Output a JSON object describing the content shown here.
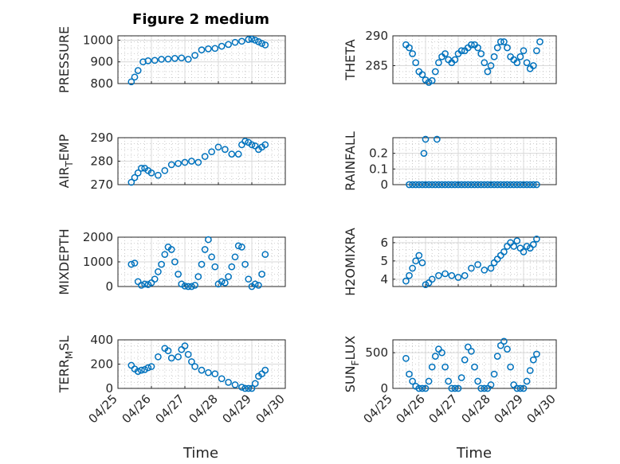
{
  "figure": {
    "title": "Figure 2 medium",
    "xlabel": "Time"
  },
  "colors": {
    "marker": "#0072bd",
    "axes": "#262626",
    "grid": "#d9d9d9"
  },
  "chart_data": [
    {
      "type": "scatter",
      "ylabel": "PRESSURE",
      "ylim": [
        800,
        1020
      ],
      "yticks": [
        "800",
        "900",
        "1000"
      ],
      "x": [
        25.4,
        25.5,
        25.6,
        25.75,
        25.9,
        26.1,
        26.3,
        26.5,
        26.7,
        26.9,
        27.1,
        27.3,
        27.5,
        27.7,
        27.9,
        28.1,
        28.3,
        28.5,
        28.7,
        28.9,
        29.0,
        29.1,
        29.2,
        29.3,
        29.4
      ],
      "y": [
        808,
        830,
        860,
        900,
        905,
        907,
        912,
        913,
        916,
        918,
        912,
        930,
        955,
        960,
        962,
        972,
        980,
        990,
        995,
        1003,
        1005,
        1000,
        993,
        985,
        978
      ]
    },
    {
      "type": "scatter",
      "ylabel": "THETA",
      "ylim": [
        282,
        290
      ],
      "yticks": [
        "285",
        "290"
      ],
      "x": [
        25.4,
        25.5,
        25.6,
        25.7,
        25.8,
        25.9,
        26.0,
        26.1,
        26.2,
        26.3,
        26.4,
        26.5,
        26.6,
        26.7,
        26.8,
        26.9,
        27.0,
        27.1,
        27.2,
        27.3,
        27.4,
        27.5,
        27.6,
        27.7,
        27.8,
        27.9,
        28.0,
        28.1,
        28.2,
        28.3,
        28.4,
        28.5,
        28.6,
        28.7,
        28.8,
        28.9,
        29.0,
        29.1,
        29.2,
        29.3,
        29.4,
        29.5
      ],
      "y": [
        288.5,
        288,
        287,
        285.5,
        284,
        283.5,
        282.6,
        282.2,
        282.5,
        284,
        285.5,
        286.5,
        287,
        286,
        285.5,
        286,
        287,
        287.5,
        287.5,
        288,
        288.5,
        288.5,
        288,
        287,
        285.5,
        284,
        285,
        286.5,
        288,
        289,
        289,
        288,
        286.5,
        286,
        285.5,
        286.5,
        287.5,
        285.5,
        284.5,
        285,
        287.5,
        289
      ]
    },
    {
      "type": "scatter",
      "ylabel": "AIR_TEMP",
      "ylim": [
        270,
        290
      ],
      "yticks": [
        "270",
        "280",
        "290"
      ],
      "x": [
        25.4,
        25.5,
        25.6,
        25.7,
        25.8,
        25.9,
        26.0,
        26.2,
        26.4,
        26.6,
        26.8,
        27.0,
        27.2,
        27.4,
        27.6,
        27.8,
        28.0,
        28.2,
        28.4,
        28.6,
        28.7,
        28.8,
        28.9,
        29.0,
        29.1,
        29.2,
        29.3,
        29.4
      ],
      "y": [
        271,
        273,
        275,
        277,
        277,
        276,
        275,
        274,
        276,
        278.5,
        279,
        279.5,
        280,
        279.5,
        282,
        284,
        286,
        285,
        283,
        283,
        287,
        288.5,
        288,
        287,
        286.5,
        285,
        286,
        287
      ]
    },
    {
      "type": "scatter",
      "ylabel": "RAINFALL",
      "ylim": [
        0,
        0.3
      ],
      "yticks": [
        "0",
        "0.1",
        "0.2"
      ],
      "x": [
        25.5,
        25.6,
        25.7,
        25.8,
        25.9,
        26.0,
        26.1,
        26.2,
        26.3,
        26.4,
        26.5,
        26.6,
        26.7,
        26.8,
        26.9,
        27.0,
        27.1,
        27.2,
        27.3,
        27.4,
        27.5,
        27.6,
        27.7,
        27.8,
        27.9,
        28.0,
        28.1,
        28.2,
        28.3,
        28.4,
        28.5,
        28.6,
        28.7,
        28.8,
        28.9,
        29.0,
        29.1,
        29.2,
        29.3,
        29.4,
        25.95,
        26.0,
        26.35
      ],
      "y": [
        0,
        0,
        0,
        0,
        0,
        0,
        0,
        0,
        0,
        0,
        0,
        0,
        0,
        0,
        0,
        0,
        0,
        0,
        0,
        0,
        0,
        0,
        0,
        0,
        0,
        0,
        0,
        0,
        0,
        0,
        0,
        0,
        0,
        0,
        0,
        0,
        0,
        0,
        0,
        0,
        0.2,
        0.29,
        0.29
      ]
    },
    {
      "type": "scatter",
      "ylabel": "MIXDEPTH",
      "ylim": [
        0,
        2000
      ],
      "yticks": [
        "0",
        "1000",
        "2000"
      ],
      "x": [
        25.4,
        25.5,
        25.6,
        25.7,
        25.8,
        25.9,
        26.0,
        26.1,
        26.2,
        26.3,
        26.4,
        26.5,
        26.6,
        26.7,
        26.8,
        26.9,
        27.0,
        27.1,
        27.2,
        27.3,
        27.4,
        27.5,
        27.6,
        27.7,
        27.8,
        27.9,
        28.0,
        28.1,
        28.2,
        28.3,
        28.4,
        28.5,
        28.6,
        28.7,
        28.8,
        28.9,
        29.0,
        29.1,
        29.2,
        29.3,
        29.4
      ],
      "y": [
        900,
        950,
        200,
        50,
        100,
        80,
        150,
        300,
        600,
        900,
        1300,
        1600,
        1500,
        1000,
        500,
        100,
        20,
        0,
        0,
        50,
        400,
        900,
        1500,
        1900,
        1200,
        800,
        100,
        200,
        150,
        400,
        800,
        1200,
        1650,
        1600,
        900,
        300,
        0,
        100,
        50,
        500,
        1300
      ]
    },
    {
      "type": "scatter",
      "ylabel": "H2OMIXRA",
      "ylim": [
        3.6,
        6.3
      ],
      "yticks": [
        "4",
        "5",
        "6"
      ],
      "x": [
        25.4,
        25.5,
        25.6,
        25.7,
        25.8,
        25.9,
        26.0,
        26.1,
        26.2,
        26.4,
        26.6,
        26.8,
        27.0,
        27.2,
        27.4,
        27.6,
        27.8,
        28.0,
        28.1,
        28.2,
        28.3,
        28.4,
        28.5,
        28.6,
        28.7,
        28.8,
        28.9,
        29.0,
        29.1,
        29.2,
        29.3,
        29.4
      ],
      "y": [
        3.9,
        4.2,
        4.6,
        5.0,
        5.3,
        4.9,
        3.7,
        3.8,
        4.0,
        4.2,
        4.3,
        4.2,
        4.1,
        4.2,
        4.6,
        4.8,
        4.5,
        4.6,
        4.9,
        5.1,
        5.3,
        5.5,
        5.8,
        6.0,
        5.8,
        6.1,
        5.7,
        5.5,
        5.8,
        5.7,
        5.9,
        6.2
      ]
    },
    {
      "type": "scatter",
      "ylabel": "TERR_MSL",
      "ylim": [
        0,
        400
      ],
      "yticks": [
        "0",
        "200",
        "400"
      ],
      "x": [
        25.4,
        25.5,
        25.6,
        25.7,
        25.8,
        25.9,
        26.0,
        26.2,
        26.4,
        26.5,
        26.6,
        26.8,
        26.9,
        27.0,
        27.1,
        27.2,
        27.3,
        27.5,
        27.7,
        27.9,
        28.1,
        28.3,
        28.5,
        28.7,
        28.8,
        28.9,
        29.0,
        29.1,
        29.2,
        29.3,
        29.4
      ],
      "y": [
        190,
        160,
        140,
        150,
        155,
        170,
        180,
        260,
        330,
        310,
        250,
        260,
        320,
        350,
        280,
        220,
        180,
        150,
        130,
        120,
        80,
        50,
        30,
        10,
        0,
        0,
        0,
        40,
        100,
        120,
        150
      ]
    },
    {
      "type": "scatter",
      "ylabel": "SUN_FLUX",
      "ylim": [
        0,
        680
      ],
      "yticks": [
        "0",
        "500"
      ],
      "x": [
        25.4,
        25.5,
        25.6,
        25.7,
        25.8,
        25.9,
        26.0,
        26.1,
        26.2,
        26.3,
        26.4,
        26.5,
        26.6,
        26.7,
        26.8,
        26.9,
        27.0,
        27.1,
        27.2,
        27.3,
        27.4,
        27.5,
        27.6,
        27.7,
        27.8,
        27.9,
        28.0,
        28.1,
        28.2,
        28.3,
        28.4,
        28.5,
        28.6,
        28.7,
        28.8,
        28.9,
        29.0,
        29.1,
        29.2,
        29.3,
        29.4
      ],
      "y": [
        420,
        200,
        100,
        30,
        0,
        0,
        0,
        100,
        300,
        450,
        550,
        500,
        300,
        100,
        0,
        0,
        0,
        150,
        400,
        580,
        520,
        300,
        100,
        0,
        0,
        0,
        50,
        200,
        450,
        600,
        660,
        550,
        300,
        50,
        0,
        0,
        0,
        100,
        250,
        400,
        480
      ]
    }
  ],
  "xaxis": {
    "xlim": [
      25,
      30
    ],
    "ticks": [
      "04/25",
      "04/26",
      "04/27",
      "04/28",
      "04/29",
      "04/30"
    ]
  }
}
